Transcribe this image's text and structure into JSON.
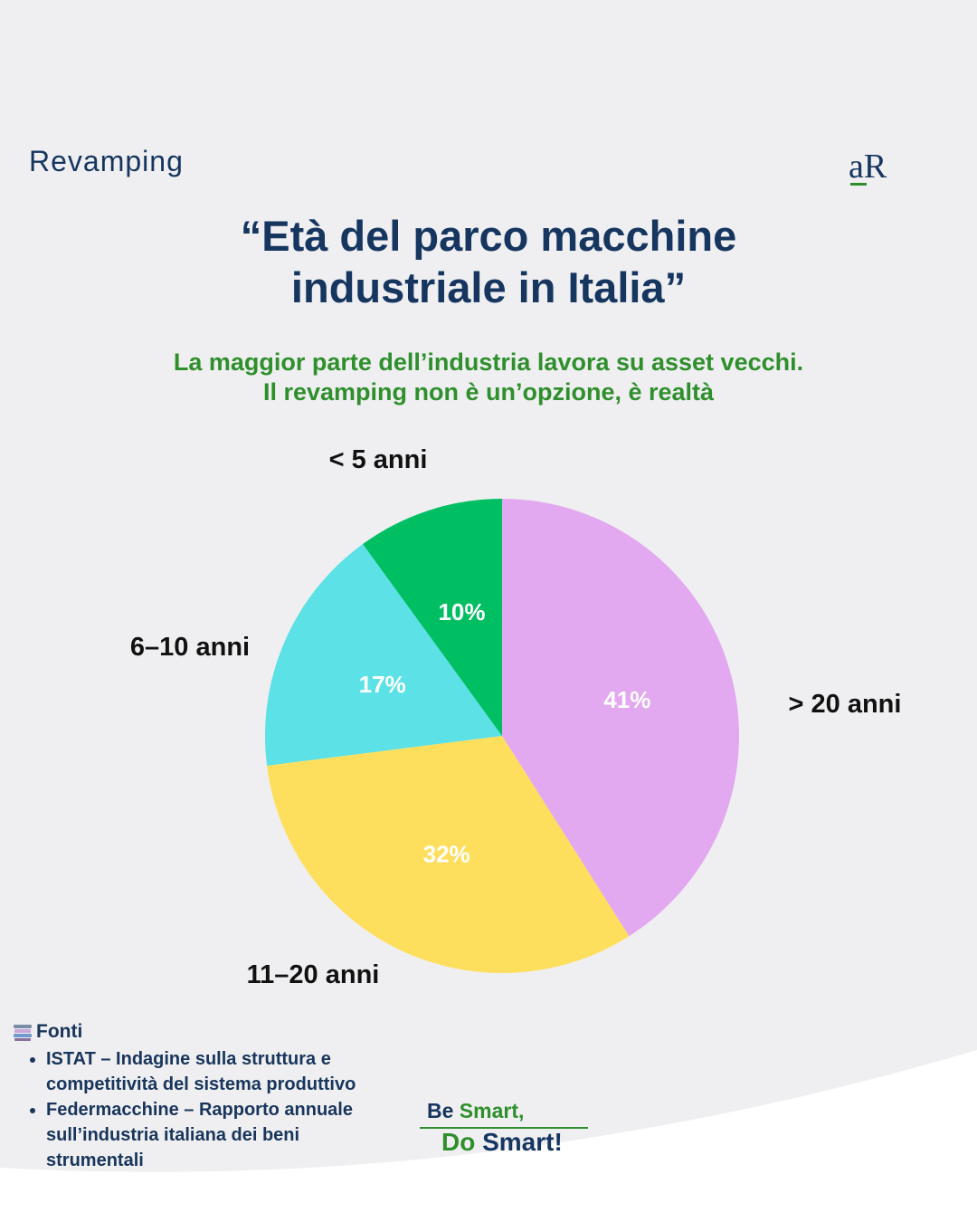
{
  "header": {
    "category": "Revamping",
    "logo_text": "aR"
  },
  "title": {
    "line1": "“Età del parco macchine",
    "line2": "industriale in Italia”"
  },
  "subtitle": {
    "line1": "La maggior parte dell’industria lavora su asset vecchi.",
    "line2": "Il revamping non è un’opzione, è realtà"
  },
  "chart_data": {
    "type": "pie",
    "title": "Età del parco macchine industriale in Italia",
    "categories": [
      "> 20 anni",
      "11–20 anni",
      "6–10 anni",
      "< 5 anni"
    ],
    "values": [
      41,
      32,
      17,
      10
    ],
    "value_labels": [
      "41%",
      "32%",
      "17%",
      "10%"
    ],
    "colors": [
      "#e2a8f0",
      "#fedf5d",
      "#5ce1e6",
      "#00bf63"
    ],
    "start": "12 o'clock",
    "direction": "clockwise"
  },
  "sources": {
    "heading": "Fonti",
    "icon": "books-icon",
    "items": [
      "ISTAT – Indagine sulla struttura e competitività del sistema produttivo",
      "Federmacchine – Rapporto annuale sull’industria italiana dei beni strumentali"
    ]
  },
  "slogan": {
    "be": "Be",
    "smart1": "Smart,",
    "do": "Do",
    "smart2": "Smart!"
  },
  "colors": {
    "navy": "#163660",
    "green": "#2f8f2c",
    "background": "#efeff1"
  }
}
